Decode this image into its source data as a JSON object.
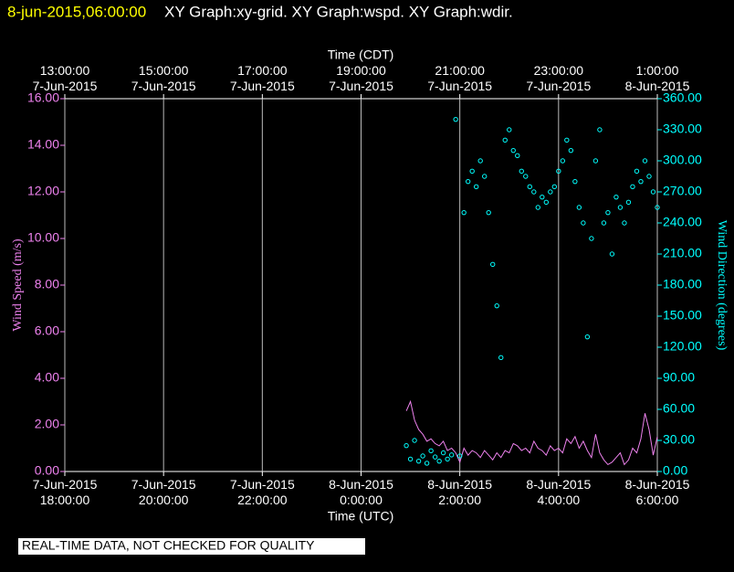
{
  "chart_data": {
    "type": "xy",
    "timestamp": "8-jun-2015,06:00:00",
    "title": "XY Graph:xy-grid.  XY Graph:wspd.  XY Graph:wdir.",
    "x2_label": "Time (CDT)",
    "x_label": "Time (UTC)",
    "y_label": "Wind Speed (m/s)",
    "y2_label": "Wind Direction (degrees)",
    "footer": "REAL-TIME DATA, NOT CHECKED FOR QUALITY",
    "grid": true,
    "xlim": [
      "2015-06-07 18:00",
      "2015-06-08 06:00"
    ],
    "xticks": [
      {
        "value": "2015-06-07 18:00",
        "label": "7-Jun-2015\n18:00:00"
      },
      {
        "value": "2015-06-07 20:00",
        "label": "7-Jun-2015\n20:00:00"
      },
      {
        "value": "2015-06-07 22:00",
        "label": "7-Jun-2015\n22:00:00"
      },
      {
        "value": "2015-06-08 00:00",
        "label": "8-Jun-2015\n0:00:00"
      },
      {
        "value": "2015-06-08 02:00",
        "label": "8-Jun-2015\n2:00:00"
      },
      {
        "value": "2015-06-08 04:00",
        "label": "8-Jun-2015\n4:00:00"
      },
      {
        "value": "2015-06-08 06:00",
        "label": "8-Jun-2015\n6:00:00"
      }
    ],
    "x2ticks": [
      {
        "value": "2015-06-07 18:00",
        "label": "13:00:00\n7-Jun-2015"
      },
      {
        "value": "2015-06-07 20:00",
        "label": "15:00:00\n7-Jun-2015"
      },
      {
        "value": "2015-06-07 22:00",
        "label": "17:00:00\n7-Jun-2015"
      },
      {
        "value": "2015-06-08 00:00",
        "label": "19:00:00\n7-Jun-2015"
      },
      {
        "value": "2015-06-08 02:00",
        "label": "21:00:00\n7-Jun-2015"
      },
      {
        "value": "2015-06-08 04:00",
        "label": "23:00:00\n7-Jun-2015"
      },
      {
        "value": "2015-06-08 06:00",
        "label": "1:00:00\n8-Jun-2015"
      }
    ],
    "ylim": [
      0,
      16
    ],
    "yticks": [
      {
        "value": 0,
        "label": "0.00"
      },
      {
        "value": 2,
        "label": "2.00"
      },
      {
        "value": 4,
        "label": "4.00"
      },
      {
        "value": 6,
        "label": "6.00"
      },
      {
        "value": 8,
        "label": "8.00"
      },
      {
        "value": 10,
        "label": "10.00"
      },
      {
        "value": 12,
        "label": "12.00"
      },
      {
        "value": 14,
        "label": "14.00"
      },
      {
        "value": 16,
        "label": "16.00"
      }
    ],
    "y2lim": [
      0,
      360
    ],
    "y2ticks": [
      {
        "value": 0,
        "label": "0.00"
      },
      {
        "value": 30,
        "label": "30.00"
      },
      {
        "value": 60,
        "label": "60.00"
      },
      {
        "value": 90,
        "label": "90.00"
      },
      {
        "value": 120,
        "label": "120.00"
      },
      {
        "value": 150,
        "label": "150.00"
      },
      {
        "value": 180,
        "label": "180.00"
      },
      {
        "value": 210,
        "label": "210.00"
      },
      {
        "value": 240,
        "label": "240.00"
      },
      {
        "value": 270,
        "label": "270.00"
      },
      {
        "value": 300,
        "label": "300.00"
      },
      {
        "value": 330,
        "label": "330.00"
      },
      {
        "value": 360,
        "label": "360.00"
      }
    ],
    "x": [
      "2015-06-08 00:55",
      "2015-06-08 01:00",
      "2015-06-08 01:05",
      "2015-06-08 01:10",
      "2015-06-08 01:15",
      "2015-06-08 01:20",
      "2015-06-08 01:25",
      "2015-06-08 01:30",
      "2015-06-08 01:35",
      "2015-06-08 01:40",
      "2015-06-08 01:45",
      "2015-06-08 01:50",
      "2015-06-08 01:55",
      "2015-06-08 02:00",
      "2015-06-08 02:05",
      "2015-06-08 02:10",
      "2015-06-08 02:15",
      "2015-06-08 02:20",
      "2015-06-08 02:25",
      "2015-06-08 02:30",
      "2015-06-08 02:35",
      "2015-06-08 02:40",
      "2015-06-08 02:45",
      "2015-06-08 02:50",
      "2015-06-08 02:55",
      "2015-06-08 03:00",
      "2015-06-08 03:05",
      "2015-06-08 03:10",
      "2015-06-08 03:15",
      "2015-06-08 03:20",
      "2015-06-08 03:25",
      "2015-06-08 03:30",
      "2015-06-08 03:35",
      "2015-06-08 03:40",
      "2015-06-08 03:45",
      "2015-06-08 03:50",
      "2015-06-08 03:55",
      "2015-06-08 04:00",
      "2015-06-08 04:05",
      "2015-06-08 04:10",
      "2015-06-08 04:15",
      "2015-06-08 04:20",
      "2015-06-08 04:25",
      "2015-06-08 04:30",
      "2015-06-08 04:35",
      "2015-06-08 04:40",
      "2015-06-08 04:45",
      "2015-06-08 04:50",
      "2015-06-08 04:55",
      "2015-06-08 05:00",
      "2015-06-08 05:05",
      "2015-06-08 05:10",
      "2015-06-08 05:15",
      "2015-06-08 05:20",
      "2015-06-08 05:25",
      "2015-06-08 05:30",
      "2015-06-08 05:35",
      "2015-06-08 05:40",
      "2015-06-08 05:45",
      "2015-06-08 05:50",
      "2015-06-08 05:55",
      "2015-06-08 06:00"
    ],
    "series": [
      {
        "name": "wspd",
        "type": "line",
        "color": "#ee82ee",
        "values": [
          2.6,
          3.0,
          2.2,
          1.8,
          1.6,
          1.3,
          1.4,
          1.2,
          1.1,
          1.3,
          0.9,
          1.0,
          0.8,
          0.4,
          1.0,
          0.7,
          0.9,
          0.8,
          0.6,
          0.9,
          0.7,
          0.5,
          0.8,
          0.6,
          0.9,
          0.8,
          1.2,
          1.1,
          0.9,
          1.0,
          0.8,
          1.3,
          1.0,
          0.9,
          0.7,
          1.1,
          0.9,
          1.0,
          0.8,
          1.4,
          1.2,
          1.5,
          1.0,
          1.3,
          0.9,
          0.6,
          1.6,
          0.8,
          0.5,
          0.3,
          0.4,
          0.6,
          0.8,
          0.3,
          0.5,
          1.0,
          0.8,
          1.4,
          2.5,
          1.8,
          0.7,
          1.5
        ]
      },
      {
        "name": "wdir",
        "type": "scatter",
        "axis": "y2",
        "color": "#00ffff",
        "values": [
          25,
          12,
          30,
          10,
          15,
          8,
          20,
          14,
          10,
          18,
          12,
          16,
          340,
          15,
          250,
          280,
          290,
          275,
          300,
          285,
          250,
          200,
          160,
          110,
          320,
          330,
          310,
          305,
          290,
          285,
          275,
          270,
          255,
          265,
          260,
          270,
          275,
          290,
          300,
          320,
          310,
          280,
          255,
          240,
          130,
          225,
          300,
          330,
          240,
          250,
          210,
          265,
          255,
          240,
          260,
          275,
          290,
          280,
          300,
          285,
          270,
          255
        ]
      }
    ]
  }
}
